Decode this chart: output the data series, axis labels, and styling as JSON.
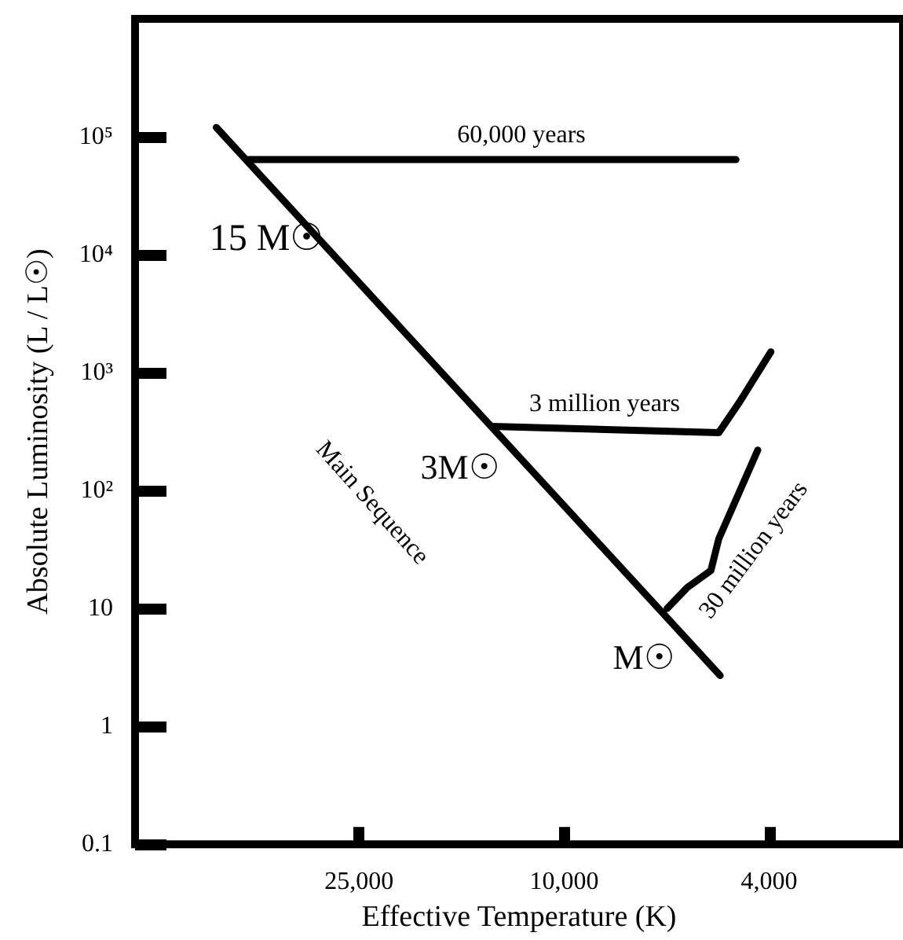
{
  "chart_data": {
    "type": "line",
    "xlabel": "Effective Temperature (K)",
    "ylabel": "Absolute Luminosity (L / L☉)",
    "log": "xy",
    "grid": false,
    "marker": "none",
    "line_style": "solid",
    "xlim": [
      68000,
      2200
    ],
    "ylim": [
      0.1,
      1000000
    ],
    "xticks": [
      {
        "value": 25000,
        "label": "25,000"
      },
      {
        "value": 10000,
        "label": "10,000"
      },
      {
        "value": 4000,
        "label": "4,000"
      }
    ],
    "yticks": [
      0.1,
      1,
      10,
      {
        "value": 100,
        "label": "10²"
      },
      {
        "value": 1000,
        "label": "10³"
      },
      {
        "value": 10000,
        "label": "10⁴"
      },
      {
        "value": 100000,
        "label": "10⁵"
      }
    ],
    "series": [
      {
        "color": "#000000",
        "x": [
          47300,
          4980
        ],
        "values": [
          120000,
          2.7
        ]
      },
      {
        "color": "#000000",
        "x": [
          40900,
          4640
        ],
        "values": [
          64000,
          64000
        ]
      },
      {
        "color": "#000000",
        "x": [
          13800,
          5010,
          4570,
          3970
        ],
        "values": [
          350,
          310,
          560,
          1500
        ]
      },
      {
        "color": "#000000",
        "x": [
          6310,
          5770,
          5190,
          5010,
          4210
        ],
        "values": [
          10,
          15,
          21,
          39,
          220
        ]
      }
    ],
    "annotations": [
      "60,000 years",
      "15 M☉",
      "3 million years",
      "3M☉",
      "Main Sequence",
      "M☉",
      "30 million years"
    ]
  }
}
